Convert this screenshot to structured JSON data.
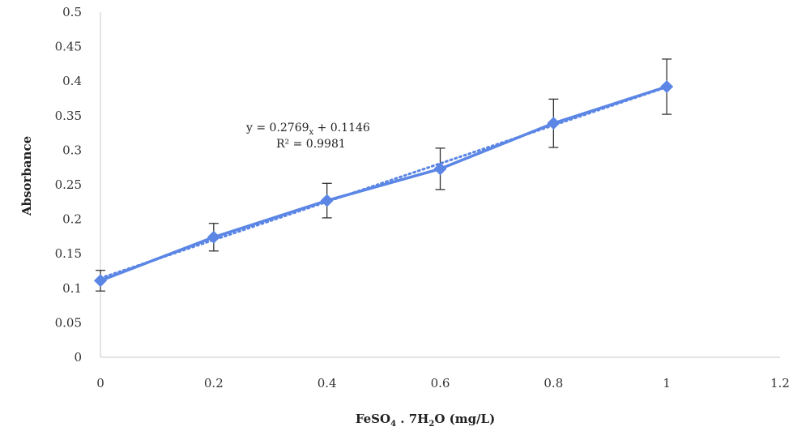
{
  "chart_data": {
    "type": "scatter",
    "xlabel": "FeSO4 . 7H2O (mg/L)",
    "xlabel_parts": [
      "FeSO",
      "4",
      " . 7H",
      "2",
      "O (mg/L)"
    ],
    "ylabel": "Absorbance",
    "xlim": [
      0,
      1.2
    ],
    "ylim": [
      0,
      0.5
    ],
    "x_ticks": [
      "0",
      "0.2",
      "0.4",
      "0.6",
      "0.8",
      "1",
      "1.2"
    ],
    "y_ticks": [
      "0",
      "0.05",
      "0.1",
      "0.15",
      "0.2",
      "0.25",
      "0.3",
      "0.35",
      "0.4",
      "0.45",
      "0.5"
    ],
    "grid": false,
    "series": [
      {
        "x": [
          0,
          0.2,
          0.4,
          0.6,
          0.8,
          1.0
        ],
        "y": [
          0.111,
          0.174,
          0.227,
          0.273,
          0.339,
          0.392
        ],
        "y_error": [
          0.015,
          0.02,
          0.025,
          0.03,
          0.035,
          0.04
        ],
        "color": "#5b86e5",
        "marker": "diamond"
      }
    ],
    "trendline": {
      "style": "dotted",
      "slope": 0.2769,
      "intercept": 0.1146,
      "x_range": [
        0,
        1.0
      ],
      "equation_text": [
        "y = 0.2769",
        "x",
        " + 0.1146"
      ],
      "r2_text": "R² = 0.9981"
    }
  }
}
